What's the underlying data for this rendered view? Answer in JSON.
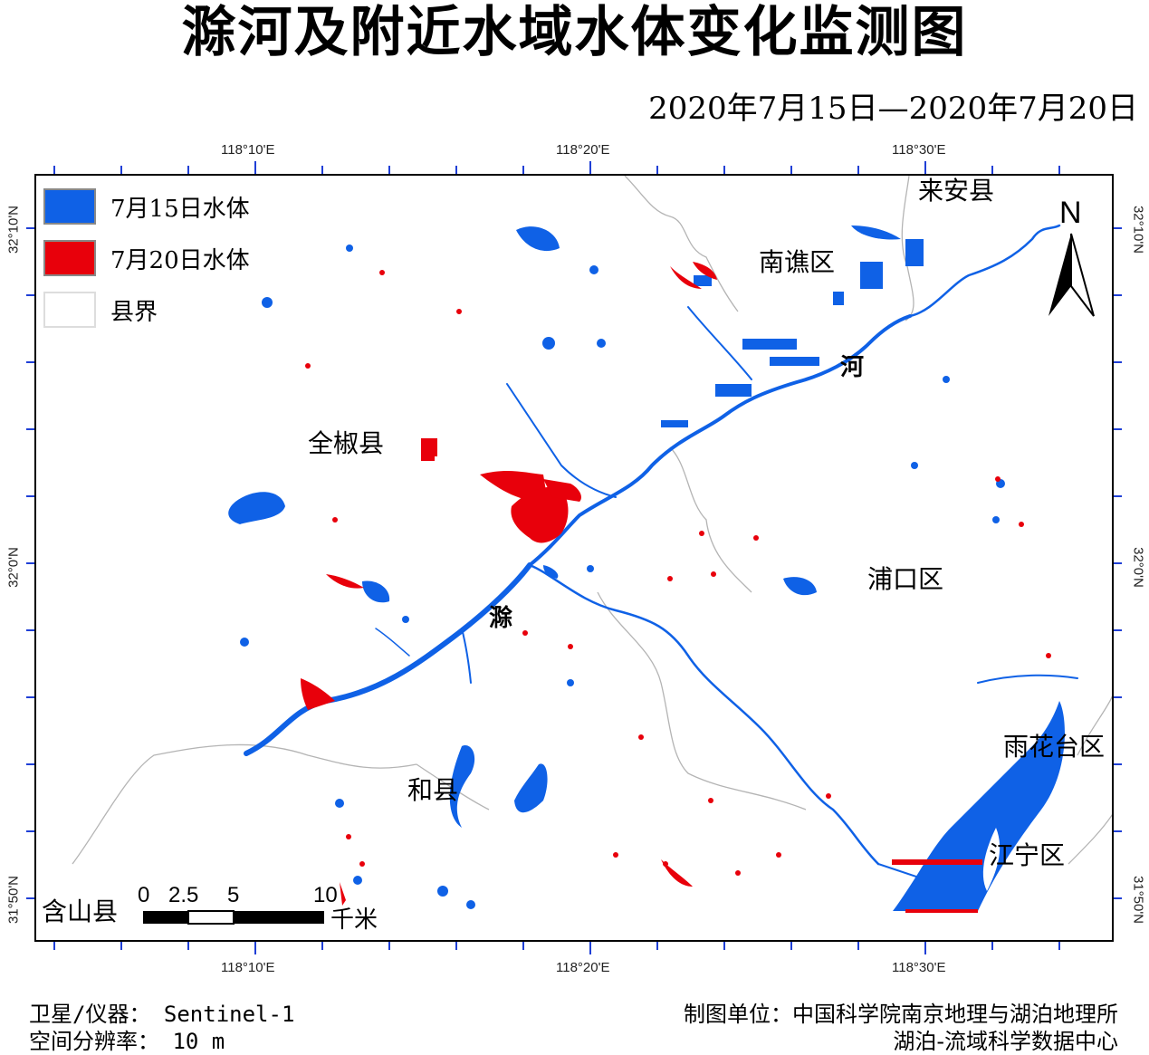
{
  "title": "滁河及附近水域水体变化监测图",
  "date_range": "2020年7月15日—2020年7月20日",
  "coords": {
    "top": [
      "118°10'E",
      "118°20'E",
      "118°30'E"
    ],
    "bottom": [
      "118°10'E",
      "118°20'E",
      "118°30'E"
    ],
    "left": [
      "32°10'N",
      "32°0'N",
      "31°50'N"
    ],
    "right": [
      "32°10'N",
      "32°0'N",
      "31°50'N"
    ]
  },
  "legend": {
    "items": [
      {
        "label": "7月15日水体",
        "color": "#0f61e6"
      },
      {
        "label": "7月20日水体",
        "color": "#e8000b"
      },
      {
        "label": "县界",
        "color": "#ffffff"
      }
    ]
  },
  "places": {
    "laian": "来安县",
    "nanqiao": "南谯区",
    "quanjiao": "全椒县",
    "he": "河",
    "chu": "滁",
    "pukou": "浦口区",
    "hexian": "和县",
    "yuhuatai": "雨花台区",
    "jiangning": "江宁区",
    "hanshan": "含山县"
  },
  "north_arrow": "N",
  "scale_bar": {
    "labels": [
      "0",
      "2.5",
      "5",
      "10"
    ],
    "unit": "千米"
  },
  "footer": {
    "satellite": "卫星/仪器： Sentinel-1",
    "resolution": "空间分辨率： 10 m",
    "org_line1": "制图单位：中国科学院南京地理与湖泊地理所",
    "org_line2": "湖泊-流域科学数据中心"
  },
  "colors": {
    "water_jul15": "#0f61e6",
    "water_jul20": "#e8000b",
    "boundary": "#b4b4b4",
    "tick": "#1f3fd6"
  }
}
